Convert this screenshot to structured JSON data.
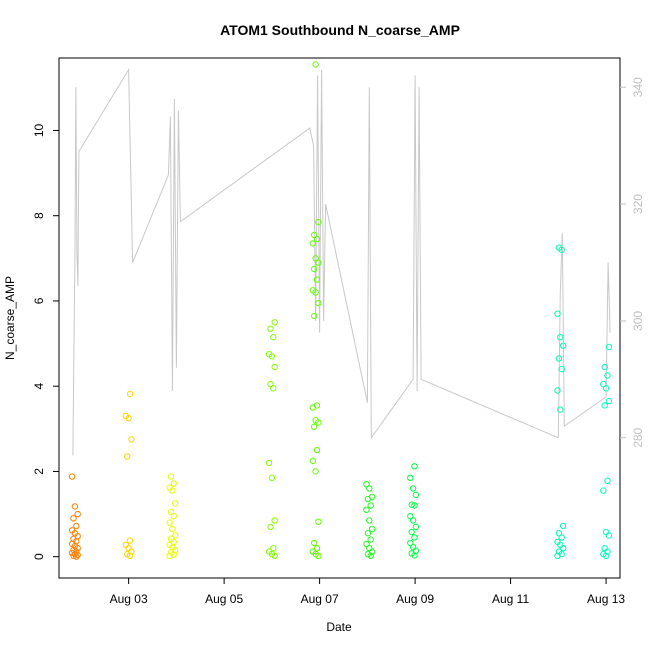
{
  "chart_data": {
    "type": "scatter",
    "title": "ATOM1 Southbound N_coarse_AMP",
    "xlabel": "Date",
    "ylabel": "N_coarse_AMP",
    "xlim": [
      "2024-08-01T13:00",
      "2024-08-13T07:00"
    ],
    "ylim": [
      -0.5,
      11.7
    ],
    "y2lim": [
      256,
      345
    ],
    "x_ticks": [
      {
        "date": "2024-08-03T00:00",
        "label": "Aug 03"
      },
      {
        "date": "2024-08-05T00:00",
        "label": "Aug 05"
      },
      {
        "date": "2024-08-07T00:00",
        "label": "Aug 07"
      },
      {
        "date": "2024-08-09T00:00",
        "label": "Aug 09"
      },
      {
        "date": "2024-08-11T00:00",
        "label": "Aug 11"
      },
      {
        "date": "2024-08-13T00:00",
        "label": "Aug 13"
      }
    ],
    "y_ticks": [
      0,
      2,
      4,
      6,
      8,
      10
    ],
    "y2_ticks": [
      280,
      300,
      320,
      340
    ],
    "grid": false,
    "legend": "none",
    "colors": {
      "line": "#c8c8c8",
      "right_axis": "#bfbfbf",
      "frame": "#000000"
    },
    "scatter_groups": [
      {
        "date": "2024-08-01T21:00",
        "color": "#ff8000",
        "values": [
          1.88,
          1.18,
          1.0,
          0.9,
          0.72,
          0.62,
          0.55,
          0.48,
          0.42,
          0.36,
          0.3,
          0.25,
          0.2,
          0.16,
          0.12,
          0.09,
          0.06,
          0.04,
          0.02,
          0.0
        ]
      },
      {
        "date": "2024-08-03T00:00",
        "color": "#ffd400",
        "values": [
          3.82,
          3.3,
          3.25,
          2.75,
          2.35,
          0.38,
          0.28,
          0.2,
          0.12,
          0.06,
          0.02
        ]
      },
      {
        "date": "2024-08-03T22:00",
        "color": "#e6ff00",
        "values": [
          1.88,
          1.72,
          1.62,
          1.55,
          1.25,
          1.05,
          0.95,
          0.8,
          0.65,
          0.5,
          0.42,
          0.35,
          0.28,
          0.22,
          0.15,
          0.1,
          0.05,
          0.02
        ]
      },
      {
        "date": "2024-08-06T00:00",
        "color": "#80ff00",
        "values": [
          5.5,
          5.35,
          5.15,
          4.75,
          4.7,
          4.45,
          4.05,
          3.95,
          2.2,
          1.85,
          0.85,
          0.7,
          0.2,
          0.12,
          0.06,
          0.02
        ]
      },
      {
        "date": "2024-08-06T22:00",
        "color": "#60ff00",
        "values": [
          11.55,
          7.85,
          7.55,
          7.45,
          7.35,
          7.0,
          6.9,
          6.75,
          6.5,
          6.25,
          6.2,
          5.95,
          5.65,
          3.55,
          3.5,
          3.2,
          3.15,
          3.05,
          2.5,
          2.25,
          2.0,
          0.82,
          0.32,
          0.2,
          0.12,
          0.06,
          0.02
        ]
      },
      {
        "date": "2024-08-08T01:00",
        "color": "#20ff20",
        "values": [
          1.7,
          1.6,
          1.4,
          1.35,
          1.2,
          1.1,
          0.85,
          0.65,
          0.55,
          0.4,
          0.3,
          0.2,
          0.12,
          0.06,
          0.02
        ]
      },
      {
        "date": "2024-08-08T23:00",
        "color": "#00ff40",
        "values": [
          2.12,
          1.85,
          1.6,
          1.45,
          1.22,
          1.2,
          0.95,
          0.85,
          0.7,
          0.58,
          0.45,
          0.32,
          0.22,
          0.14,
          0.08,
          0.03
        ]
      },
      {
        "date": "2024-08-12T01:00",
        "color": "#00ffb0",
        "values": [
          7.25,
          7.2,
          5.7,
          5.15,
          4.95,
          4.65,
          4.4,
          3.9,
          3.45,
          0.72,
          0.55,
          0.45,
          0.35,
          0.28,
          0.2,
          0.12,
          0.06,
          0.02
        ]
      },
      {
        "date": "2024-08-13T00:00",
        "color": "#00ffc0",
        "values": [
          4.92,
          4.45,
          4.25,
          4.05,
          3.95,
          3.65,
          3.55,
          1.78,
          1.55,
          0.58,
          0.5,
          0.2,
          0.12,
          0.06,
          0.02
        ]
      }
    ],
    "line_series": {
      "axis": "right",
      "points": [
        [
          "2024-08-01T20:00",
          277
        ],
        [
          "2024-08-01T20:30",
          295
        ],
        [
          "2024-08-01T21:00",
          310
        ],
        [
          "2024-08-01T21:30",
          340
        ],
        [
          "2024-08-01T22:00",
          312
        ],
        [
          "2024-08-01T22:30",
          306
        ],
        [
          "2024-08-01T23:00",
          329
        ],
        [
          "2024-08-03T00:00",
          343
        ],
        [
          "2024-08-03T02:00",
          310
        ],
        [
          "2024-08-03T20:00",
          325
        ],
        [
          "2024-08-03T21:00",
          335
        ],
        [
          "2024-08-03T22:00",
          288
        ],
        [
          "2024-08-03T23:00",
          338
        ],
        [
          "2024-08-04T00:00",
          292
        ],
        [
          "2024-08-04T01:00",
          336
        ],
        [
          "2024-08-04T02:00",
          317
        ],
        [
          "2024-08-06T19:00",
          333
        ],
        [
          "2024-08-06T21:00",
          330
        ],
        [
          "2024-08-06T22:00",
          300
        ],
        [
          "2024-08-06T23:00",
          342
        ],
        [
          "2024-08-07T00:00",
          298
        ],
        [
          "2024-08-07T01:00",
          343
        ],
        [
          "2024-08-07T02:00",
          300
        ],
        [
          "2024-08-07T03:00",
          320
        ],
        [
          "2024-08-08T00:00",
          286
        ],
        [
          "2024-08-08T01:00",
          340
        ],
        [
          "2024-08-08T02:00",
          280
        ],
        [
          "2024-08-08T23:00",
          290
        ],
        [
          "2024-08-09T00:00",
          342
        ],
        [
          "2024-08-09T01:00",
          288
        ],
        [
          "2024-08-09T02:00",
          340
        ],
        [
          "2024-08-09T03:00",
          290
        ],
        [
          "2024-08-12T00:00",
          280
        ],
        [
          "2024-08-12T01:00",
          305
        ],
        [
          "2024-08-12T02:00",
          315
        ],
        [
          "2024-08-12T03:00",
          282
        ],
        [
          "2024-08-13T00:00",
          287
        ],
        [
          "2024-08-13T01:00",
          310
        ],
        [
          "2024-08-13T02:00",
          298
        ]
      ]
    }
  }
}
